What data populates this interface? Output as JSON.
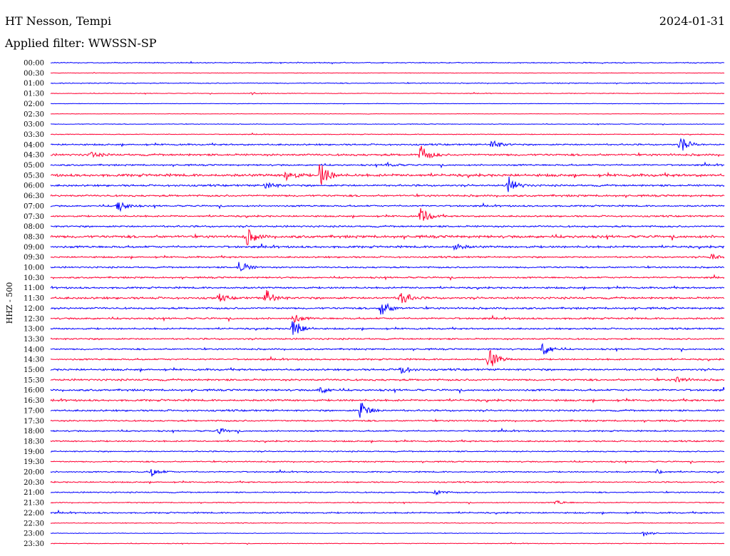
{
  "header": {
    "station": "HT Nesson, Tempi",
    "date": "2024-01-31",
    "filter": "Applied filter: WWSSN-SP"
  },
  "chart_data": {
    "type": "line",
    "subtype": "helicorder",
    "ylabel": "HHZ - 500",
    "colors": {
      "even": "#0000ff",
      "odd": "#ff0033"
    },
    "rows": [
      "00:00",
      "00:30",
      "01:00",
      "01:30",
      "02:00",
      "02:30",
      "03:00",
      "03:30",
      "04:00",
      "04:30",
      "05:00",
      "05:30",
      "06:00",
      "06:30",
      "07:00",
      "07:30",
      "08:00",
      "08:30",
      "09:00",
      "09:30",
      "10:00",
      "10:30",
      "11:00",
      "11:30",
      "12:00",
      "12:30",
      "13:00",
      "13:30",
      "14:00",
      "14:30",
      "15:00",
      "15:30",
      "16:00",
      "16:30",
      "17:00",
      "17:30",
      "18:00",
      "18:30",
      "19:00",
      "19:30",
      "20:00",
      "20:30",
      "21:00",
      "21:30",
      "22:00",
      "22:30",
      "23:00",
      "23:30"
    ],
    "noise": [
      0.6,
      0.3,
      0.6,
      0.4,
      0.3,
      0.3,
      0.4,
      0.5,
      1.0,
      1.3,
      1.0,
      1.6,
      1.2,
      1.2,
      1.0,
      1.0,
      1.1,
      1.6,
      1.3,
      1.0,
      1.0,
      1.0,
      1.1,
      1.3,
      1.2,
      1.1,
      1.0,
      1.0,
      1.0,
      1.0,
      1.2,
      1.2,
      1.2,
      1.2,
      1.1,
      1.0,
      0.9,
      0.9,
      0.8,
      0.8,
      0.8,
      0.8,
      0.8,
      0.6,
      0.9,
      0.5,
      0.4,
      0.4
    ],
    "events": [
      {
        "row": 8,
        "pos": 0.655,
        "amp": 7
      },
      {
        "row": 8,
        "pos": 0.935,
        "amp": 12
      },
      {
        "row": 9,
        "pos": 0.06,
        "amp": 4
      },
      {
        "row": 9,
        "pos": 0.55,
        "amp": 14
      },
      {
        "row": 10,
        "pos": 0.5,
        "amp": 3
      },
      {
        "row": 11,
        "pos": 0.35,
        "amp": 8
      },
      {
        "row": 11,
        "pos": 0.4,
        "amp": 20
      },
      {
        "row": 12,
        "pos": 0.68,
        "amp": 12
      },
      {
        "row": 12,
        "pos": 0.32,
        "amp": 6
      },
      {
        "row": 14,
        "pos": 0.1,
        "amp": 10
      },
      {
        "row": 15,
        "pos": 0.55,
        "amp": 13
      },
      {
        "row": 17,
        "pos": 0.29,
        "amp": 14
      },
      {
        "row": 18,
        "pos": 0.6,
        "amp": 5
      },
      {
        "row": 19,
        "pos": 0.98,
        "amp": 5
      },
      {
        "row": 20,
        "pos": 0.28,
        "amp": 10
      },
      {
        "row": 23,
        "pos": 0.32,
        "amp": 12
      },
      {
        "row": 23,
        "pos": 0.52,
        "amp": 12
      },
      {
        "row": 23,
        "pos": 0.25,
        "amp": 5
      },
      {
        "row": 24,
        "pos": 0.49,
        "amp": 13
      },
      {
        "row": 25,
        "pos": 0.36,
        "amp": 7
      },
      {
        "row": 26,
        "pos": 0.36,
        "amp": 16
      },
      {
        "row": 28,
        "pos": 0.73,
        "amp": 11
      },
      {
        "row": 29,
        "pos": 0.65,
        "amp": 17
      },
      {
        "row": 30,
        "pos": 0.52,
        "amp": 6
      },
      {
        "row": 31,
        "pos": 0.93,
        "amp": 5
      },
      {
        "row": 32,
        "pos": 0.4,
        "amp": 5
      },
      {
        "row": 34,
        "pos": 0.46,
        "amp": 14
      },
      {
        "row": 36,
        "pos": 0.25,
        "amp": 4
      },
      {
        "row": 40,
        "pos": 0.15,
        "amp": 6
      },
      {
        "row": 40,
        "pos": 0.9,
        "amp": 3
      },
      {
        "row": 42,
        "pos": 0.57,
        "amp": 4
      },
      {
        "row": 43,
        "pos": 0.75,
        "amp": 3
      },
      {
        "row": 46,
        "pos": 0.88,
        "amp": 4
      },
      {
        "row": 3,
        "pos": 0.3,
        "amp": 2
      }
    ]
  }
}
